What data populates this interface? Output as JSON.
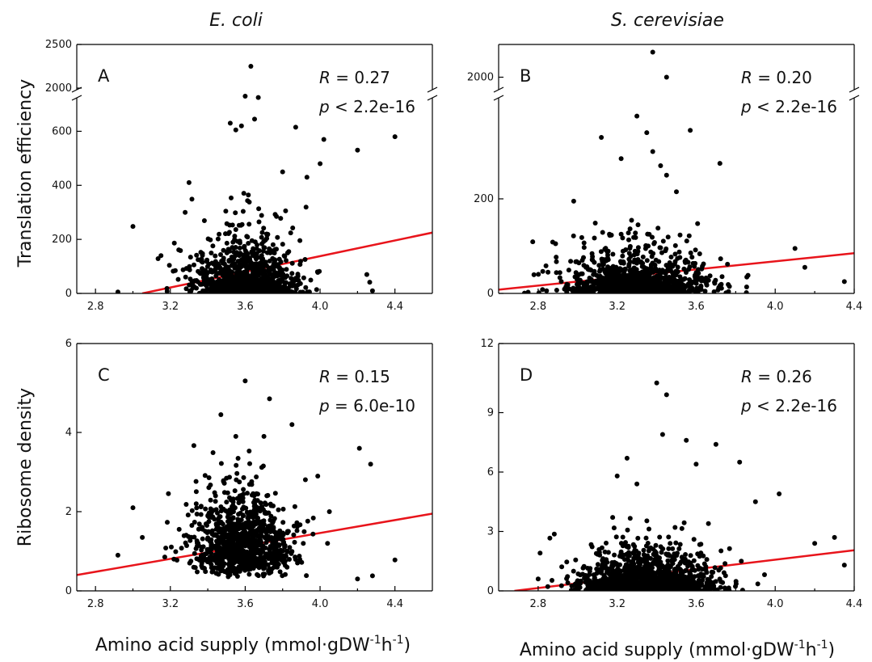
{
  "column_titles": [
    "E. coli",
    "S. cerevisiae"
  ],
  "ylabels": [
    "Translation efficiency",
    "Ribosome density"
  ],
  "xlabel_main": "Amino acid supply (mmol·gDW",
  "xlabel_sup1": "-1",
  "xlabel_mid": "h",
  "xlabel_sup2": "-1",
  "xlabel_end": ")",
  "colors": {
    "points": "#000000",
    "fit_line": "#e8141b",
    "axis": "#000000"
  },
  "chart_data": [
    {
      "type": "scatter",
      "panel": "A",
      "organism": "E. coli",
      "axis_break": true,
      "stat_r_label": "R",
      "stat_r_value": " = 0.27",
      "stat_p_label": "p",
      "stat_p_value": " < 2.2e-16",
      "xlim": [
        2.7,
        4.6
      ],
      "xticks": [
        "2.8",
        "3.2",
        "3.6",
        "4.0",
        "4.4"
      ],
      "ylim": [
        0,
        700
      ],
      "yticks": [
        "0",
        "200",
        "400",
        "600"
      ],
      "ylim_upper": [
        2000,
        2500
      ],
      "yticks_upper": [
        "2000",
        "2500"
      ],
      "fit_line": [
        [
          3.05,
          0
        ],
        [
          4.6,
          225
        ]
      ],
      "cluster": {
        "x_center": 3.6,
        "x_sd": 0.14,
        "y_scale": 70,
        "n": 900
      },
      "outliers": [
        [
          2.92,
          5
        ],
        [
          3.0,
          248
        ],
        [
          3.15,
          140
        ],
        [
          3.3,
          410
        ],
        [
          3.52,
          630
        ],
        [
          3.55,
          605
        ],
        [
          3.58,
          620
        ],
        [
          3.6,
          730
        ],
        [
          3.65,
          645
        ],
        [
          3.67,
          725
        ],
        [
          3.8,
          450
        ],
        [
          3.87,
          615
        ],
        [
          3.93,
          430
        ],
        [
          4.0,
          480
        ],
        [
          4.02,
          570
        ],
        [
          4.2,
          530
        ],
        [
          4.28,
          10
        ],
        [
          4.4,
          580
        ],
        [
          4.25,
          70
        ],
        [
          3.63,
          2250
        ]
      ]
    },
    {
      "type": "scatter",
      "panel": "B",
      "organism": "S. cerevisiae",
      "axis_break": true,
      "stat_r_label": "R",
      "stat_r_value": " = 0.20",
      "stat_p_label": "p",
      "stat_p_value": " < 2.2e-16",
      "xlim": [
        2.6,
        4.4
      ],
      "xticks": [
        "2.8",
        "3.2",
        "3.6",
        "4.0",
        "4.4"
      ],
      "ylim": [
        0,
        400
      ],
      "yticks": [
        "0",
        "200"
      ],
      "ylim_upper": [
        1900,
        2300
      ],
      "yticks_upper": [
        "2000"
      ],
      "fit_line": [
        [
          2.6,
          8
        ],
        [
          4.4,
          85
        ]
      ],
      "cluster": {
        "x_center": 3.3,
        "x_sd": 0.17,
        "y_scale": 30,
        "n": 1100
      },
      "outliers": [
        [
          2.85,
          45
        ],
        [
          2.98,
          195
        ],
        [
          3.12,
          330
        ],
        [
          3.22,
          285
        ],
        [
          3.3,
          375
        ],
        [
          3.35,
          340
        ],
        [
          3.38,
          300
        ],
        [
          3.42,
          270
        ],
        [
          3.45,
          250
        ],
        [
          3.5,
          215
        ],
        [
          3.57,
          345
        ],
        [
          3.72,
          275
        ],
        [
          4.1,
          95
        ],
        [
          4.15,
          55
        ],
        [
          4.35,
          25
        ],
        [
          3.28,
          1750
        ],
        [
          3.33,
          1720
        ],
        [
          3.4,
          1650
        ],
        [
          3.38,
          2230
        ],
        [
          3.5,
          1680
        ],
        [
          3.45,
          2000
        ]
      ]
    },
    {
      "type": "scatter",
      "panel": "C",
      "organism": "E. coli",
      "axis_break": false,
      "stat_r_label": "R",
      "stat_r_value": " = 0.15",
      "stat_p_label": "p",
      "stat_p_value": " = 6.0e-10",
      "xlim": [
        2.7,
        4.6
      ],
      "xticks": [
        "2.8",
        "3.2",
        "3.6",
        "4.0",
        "4.4"
      ],
      "ylim": [
        0,
        6
      ],
      "yticks": [
        "0",
        "2",
        "4",
        "6"
      ],
      "fit_line": [
        [
          2.7,
          0.4
        ],
        [
          4.6,
          1.95
        ]
      ],
      "cluster": {
        "x_center": 3.58,
        "x_sd": 0.14,
        "y_scale": 0.9,
        "n": 1000
      },
      "outliers": [
        [
          2.92,
          0.9
        ],
        [
          3.0,
          2.1
        ],
        [
          3.05,
          1.35
        ],
        [
          3.47,
          4.45
        ],
        [
          3.55,
          3.9
        ],
        [
          3.6,
          5.3
        ],
        [
          3.7,
          3.9
        ],
        [
          3.73,
          4.85
        ],
        [
          3.85,
          4.2
        ],
        [
          4.05,
          2.0
        ],
        [
          4.21,
          3.6
        ],
        [
          4.27,
          3.2
        ],
        [
          4.4,
          0.78
        ],
        [
          4.28,
          0.38
        ],
        [
          4.2,
          0.3
        ]
      ]
    },
    {
      "type": "scatter",
      "panel": "D",
      "organism": "S. cerevisiae",
      "axis_break": false,
      "stat_r_label": "R",
      "stat_r_value": " = 0.26",
      "stat_p_label": "p",
      "stat_p_value": " < 2.2e-16",
      "xlim": [
        2.6,
        4.4
      ],
      "xticks": [
        "2.8",
        "3.2",
        "3.6",
        "4.0",
        "4.4"
      ],
      "ylim": [
        0,
        12
      ],
      "yticks": [
        "0",
        "3",
        "6",
        "9",
        "12"
      ],
      "fit_line": [
        [
          2.68,
          0
        ],
        [
          4.4,
          2.05
        ]
      ],
      "cluster": {
        "x_center": 3.35,
        "x_sd": 0.17,
        "y_scale": 0.7,
        "n": 1200
      },
      "outliers": [
        [
          2.8,
          0.6
        ],
        [
          3.2,
          5.8
        ],
        [
          3.25,
          6.7
        ],
        [
          3.3,
          5.4
        ],
        [
          3.4,
          10.5
        ],
        [
          3.45,
          9.9
        ],
        [
          3.43,
          7.9
        ],
        [
          3.55,
          7.6
        ],
        [
          3.6,
          6.4
        ],
        [
          3.7,
          7.4
        ],
        [
          3.82,
          6.5
        ],
        [
          3.9,
          4.5
        ],
        [
          4.02,
          4.9
        ],
        [
          4.2,
          2.4
        ],
        [
          4.3,
          2.7
        ],
        [
          4.35,
          1.3
        ]
      ]
    }
  ]
}
